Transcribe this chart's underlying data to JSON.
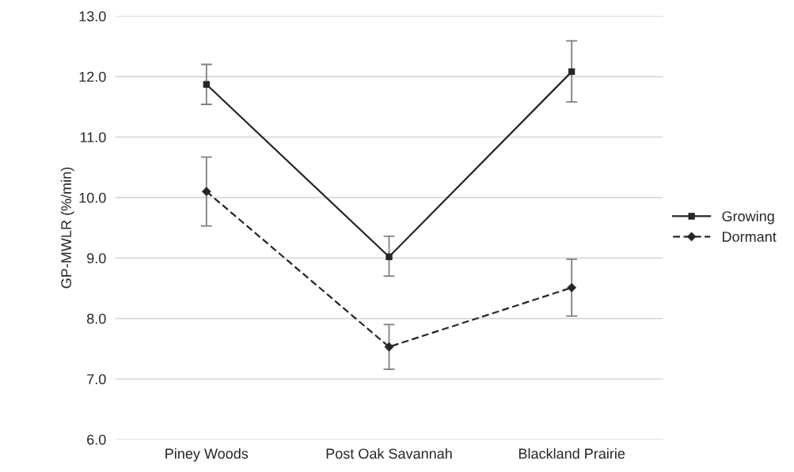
{
  "chart_data": {
    "type": "line",
    "ylabel": "GP-MWLR (%/min)",
    "categories": [
      "Piney Woods",
      "Post Oak Savannah",
      "Blackland Prairie"
    ],
    "series": [
      {
        "name": "Growing",
        "color": "#262626",
        "values": [
          11.87,
          9.02,
          12.08
        ],
        "errors": [
          [
            11.54,
            12.2
          ],
          [
            8.7,
            9.36
          ],
          [
            11.58,
            12.59
          ]
        ],
        "marker": "square",
        "line_style": "solid"
      },
      {
        "name": "Dormant",
        "color": "#262626",
        "values": [
          10.1,
          7.53,
          8.51
        ],
        "errors": [
          [
            9.53,
            10.67
          ],
          [
            7.16,
            7.9
          ],
          [
            8.04,
            8.98
          ]
        ],
        "marker": "diamond",
        "line_style": "dashed"
      }
    ],
    "ylim": [
      6.0,
      13.0
    ],
    "yticks": [
      {
        "value": 6,
        "label": "6.0"
      },
      {
        "value": 7,
        "label": "7.0"
      },
      {
        "value": 8,
        "label": "8.0"
      },
      {
        "value": 9,
        "label": "9.0"
      },
      {
        "value": 10,
        "label": "10.0"
      },
      {
        "value": 11,
        "label": "11.0"
      },
      {
        "value": 12,
        "label": "12.0"
      },
      {
        "value": 13,
        "label": "13.0"
      }
    ],
    "grid": "y",
    "legend": "right"
  }
}
